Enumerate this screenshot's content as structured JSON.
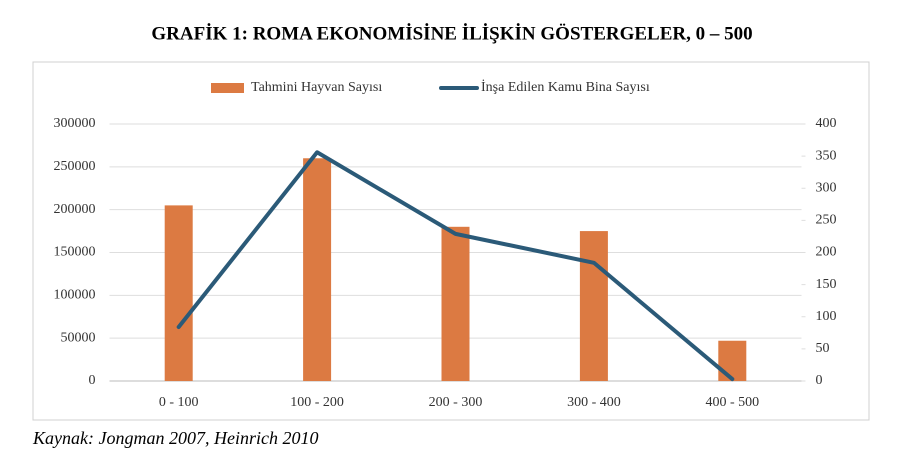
{
  "chart_data": {
    "type": "bar",
    "title": "GRAFİK 1: ROMA EKONOMİSİNE İLİŞKİN GÖSTERGELER, 0 – 500",
    "source": "Kaynak: Jongman 2007, Heinrich 2010",
    "categories": [
      "0 - 100",
      "100 - 200",
      "200 - 300",
      "300 - 400",
      "400 - 500"
    ],
    "series": [
      {
        "name": "Tahmini Hayvan Sayısı",
        "type": "bar",
        "color": "#dc7a42",
        "values": [
          205000,
          260000,
          180000,
          175000,
          47000
        ]
      },
      {
        "name": "İnşa Edilen Kamu Bina Sayısı",
        "type": "line",
        "axis": "y2",
        "color": "#2b5a78",
        "values": [
          84,
          356,
          229,
          184,
          3
        ]
      }
    ],
    "ylim": [
      0,
      300000
    ],
    "yticks": [
      0,
      50000,
      100000,
      150000,
      200000,
      250000,
      300000
    ],
    "y2lim": [
      0,
      400
    ],
    "y2ticks": [
      0,
      50,
      100,
      150,
      200,
      250,
      300,
      350,
      400
    ],
    "grid": true,
    "legend": "top"
  }
}
